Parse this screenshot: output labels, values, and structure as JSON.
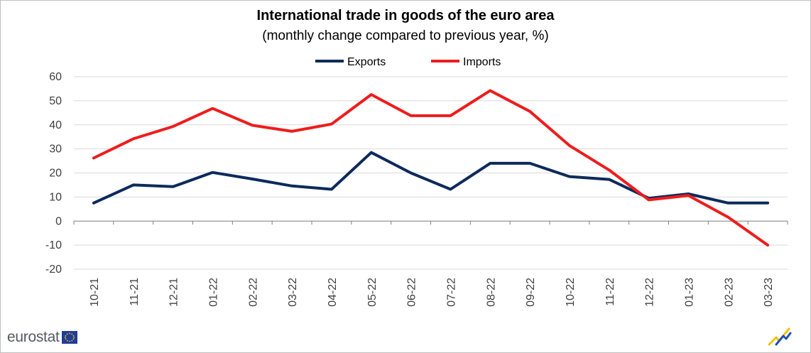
{
  "brand": {
    "name": "eurostat"
  },
  "colors": {
    "exports": "#0d2a5c",
    "imports": "#ee1c1c",
    "grid": "#d9d9d9"
  },
  "chart_data": {
    "type": "line",
    "title": "International trade in goods of the euro area",
    "subtitle": "(monthly change compared to previous year, %)",
    "categories": [
      "10-21",
      "11-21",
      "12-21",
      "01-22",
      "02-22",
      "03-22",
      "04-22",
      "05-22",
      "06-22",
      "07-22",
      "08-22",
      "09-22",
      "10-22",
      "11-22",
      "12-22",
      "01-23",
      "02-23",
      "03-23"
    ],
    "ylim": [
      -20,
      60
    ],
    "yticks": [
      -20,
      -10,
      0,
      10,
      20,
      30,
      40,
      50,
      60
    ],
    "legend_position": "top-center",
    "series": [
      {
        "name": "Exports",
        "color": "#0d2a5c",
        "values": [
          7.5,
          15,
          14.3,
          20.2,
          17.5,
          14.6,
          13.2,
          28.5,
          20,
          13.2,
          24,
          24,
          18.5,
          17.3,
          9.5,
          11.3,
          7.5,
          7.5
        ]
      },
      {
        "name": "Imports",
        "color": "#ee1c1c",
        "values": [
          26.2,
          34.2,
          39.3,
          46.8,
          39.8,
          37.3,
          40.3,
          52.6,
          43.8,
          43.8,
          54.2,
          45.6,
          31.4,
          21.2,
          8.8,
          10.6,
          1.6,
          -10
        ]
      }
    ]
  }
}
